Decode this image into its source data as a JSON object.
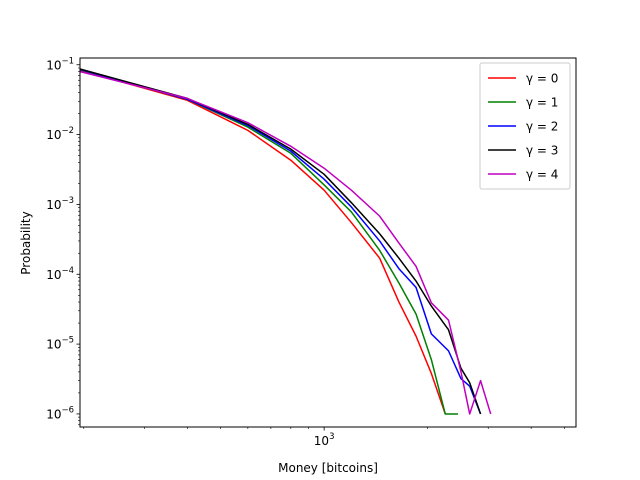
{
  "chart_data": {
    "type": "line",
    "xlabel": "Money [bitcoins]",
    "ylabel": "Probability",
    "xscale": "log",
    "yscale": "log",
    "xlim": [
      195,
      5400
    ],
    "ylim": [
      6.5e-07,
      0.125
    ],
    "x_ticks": [
      {
        "value": 1000,
        "base": "10",
        "exp": "3"
      }
    ],
    "y_ticks": [
      {
        "value": 1e-06,
        "base": "10",
        "exp": "−6"
      },
      {
        "value": 1e-05,
        "base": "10",
        "exp": "−5"
      },
      {
        "value": 0.0001,
        "base": "10",
        "exp": "−4"
      },
      {
        "value": 0.001,
        "base": "10",
        "exp": "−3"
      },
      {
        "value": 0.01,
        "base": "10",
        "exp": "−2"
      },
      {
        "value": 0.1,
        "base": "10",
        "exp": "−1"
      }
    ],
    "legend_position": "top-right",
    "grid": false,
    "series": [
      {
        "name": "γ = 0",
        "color": "#ff0000",
        "points": [
          [
            195,
            0.084
          ],
          [
            400,
            0.031
          ],
          [
            600,
            0.0115
          ],
          [
            800,
            0.0043
          ],
          [
            1000,
            0.0016
          ],
          [
            1200,
            0.00055
          ],
          [
            1450,
            0.00017
          ],
          [
            1650,
            4e-05
          ],
          [
            1850,
            1.3e-05
          ],
          [
            2050,
            3.8e-06
          ],
          [
            2250,
            1e-06
          ]
        ]
      },
      {
        "name": "γ = 1",
        "color": "#008000",
        "points": [
          [
            195,
            0.085
          ],
          [
            400,
            0.032
          ],
          [
            600,
            0.0128
          ],
          [
            800,
            0.0054
          ],
          [
            1000,
            0.0019
          ],
          [
            1200,
            0.00078
          ],
          [
            1450,
            0.00022
          ],
          [
            1650,
            7.5e-05
          ],
          [
            1850,
            2.7e-05
          ],
          [
            2050,
            6e-06
          ],
          [
            2250,
            1e-06
          ],
          [
            2450,
            1e-06
          ]
        ]
      },
      {
        "name": "γ = 2",
        "color": "#0000ff",
        "points": [
          [
            195,
            0.086
          ],
          [
            400,
            0.032
          ],
          [
            600,
            0.0135
          ],
          [
            800,
            0.0058
          ],
          [
            1000,
            0.0023
          ],
          [
            1200,
            0.00092
          ],
          [
            1450,
            0.0003
          ],
          [
            1650,
            0.00012
          ],
          [
            1850,
            6.5e-05
          ],
          [
            2050,
            1.4e-05
          ],
          [
            2300,
            8e-06
          ],
          [
            2500,
            3.2e-06
          ],
          [
            2650,
            2.5e-06
          ],
          [
            2850,
            1e-06
          ]
        ]
      },
      {
        "name": "γ = 3",
        "color": "#000000",
        "points": [
          [
            195,
            0.087
          ],
          [
            400,
            0.033
          ],
          [
            600,
            0.014
          ],
          [
            800,
            0.0062
          ],
          [
            1000,
            0.0027
          ],
          [
            1200,
            0.00106
          ],
          [
            1450,
            0.00038
          ],
          [
            1650,
            0.00017
          ],
          [
            1850,
            8e-05
          ],
          [
            2050,
            3.5e-05
          ],
          [
            2300,
            1.6e-05
          ],
          [
            2500,
            4.5e-06
          ],
          [
            2650,
            2.8e-06
          ],
          [
            2850,
            1e-06
          ]
        ]
      },
      {
        "name": "γ = 4",
        "color": "#c000c0",
        "points": [
          [
            195,
            0.08
          ],
          [
            400,
            0.033
          ],
          [
            600,
            0.0148
          ],
          [
            800,
            0.0068
          ],
          [
            1000,
            0.0033
          ],
          [
            1200,
            0.0016
          ],
          [
            1450,
            0.00068
          ],
          [
            1650,
            0.00028
          ],
          [
            1850,
            0.00013
          ],
          [
            2050,
            3.9e-05
          ],
          [
            2300,
            2.2e-05
          ],
          [
            2500,
            4e-06
          ],
          [
            2650,
            1e-06
          ],
          [
            2850,
            3e-06
          ],
          [
            3050,
            1e-06
          ]
        ]
      }
    ]
  }
}
